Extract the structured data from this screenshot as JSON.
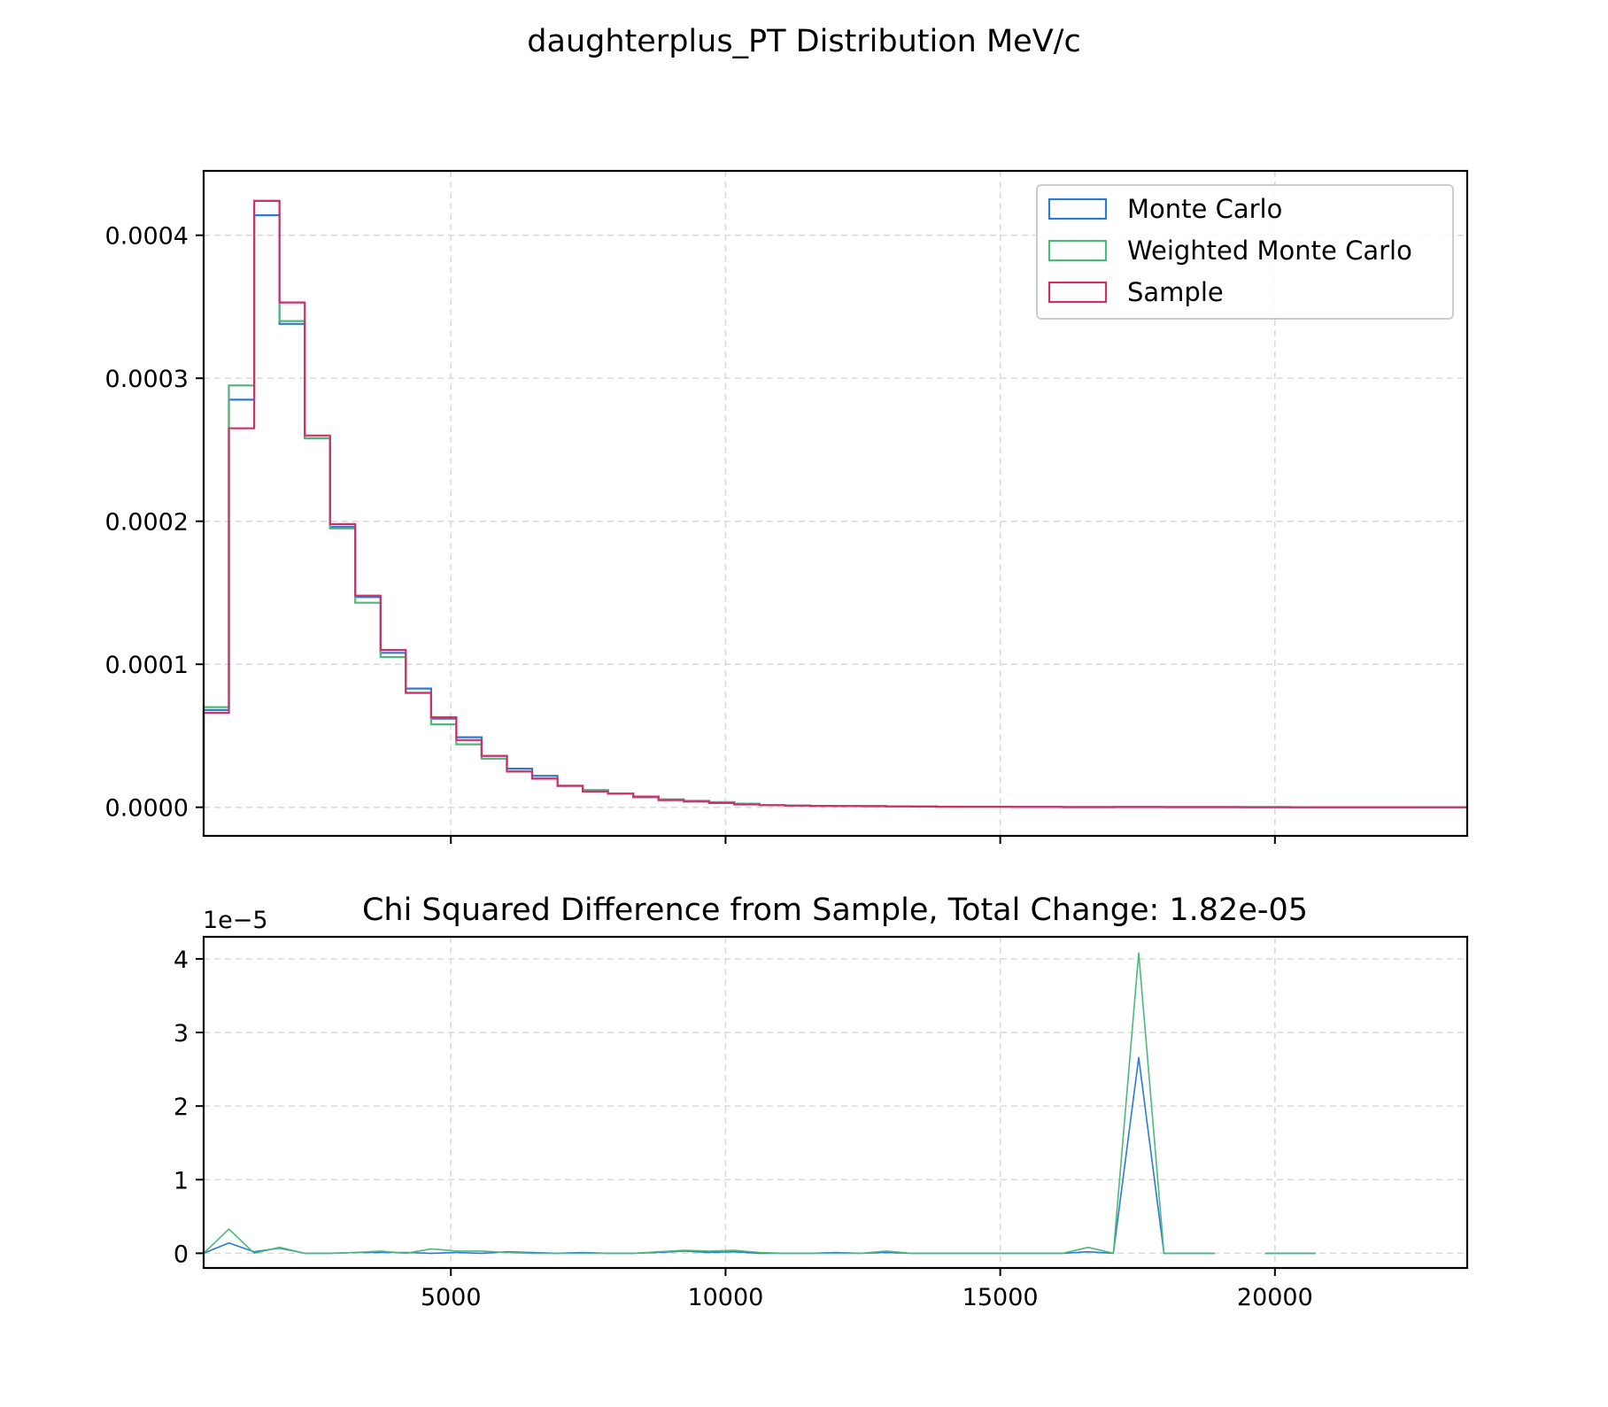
{
  "figure": {
    "suptitle": "daughterplus_PT Distribution MeV/c"
  },
  "colors": {
    "monte_carlo": "#2b7bd0",
    "weighted_monte_carlo": "#4cb87a",
    "sample": "#d0306a"
  },
  "chart_data": [
    {
      "type": "histogram-step",
      "title": "",
      "xlabel": "",
      "ylabel": "",
      "xlim": [
        500,
        23500
      ],
      "ylim": [
        -2e-05,
        0.000445
      ],
      "grid": true,
      "legend_position": "top-right",
      "yticks": [
        0,
        0.0001,
        0.0002,
        0.0003,
        0.0004
      ],
      "ytick_labels": [
        "0.0000",
        "0.0001",
        "0.0002",
        "0.0003",
        "0.0004"
      ],
      "xticks": [
        5000,
        10000,
        15000,
        20000
      ],
      "bin_edges": [
        500,
        960,
        1420,
        1880,
        2340,
        2800,
        3260,
        3720,
        4180,
        4640,
        5100,
        5560,
        6020,
        6480,
        6940,
        7400,
        7860,
        8320,
        8780,
        9240,
        9700,
        10160,
        10620,
        11080,
        11540,
        12000,
        12460,
        12920,
        13380,
        13840,
        14300,
        14760,
        15220,
        15680,
        16140,
        16600,
        17060,
        17520,
        17980,
        18440,
        18900,
        19360,
        19820,
        20280,
        20740,
        21200,
        21660,
        22120,
        22580,
        23040,
        23500
      ],
      "series": [
        {
          "name": "Monte Carlo",
          "color": "#2b7bd0",
          "values": [
            6.8e-05,
            0.000285,
            0.000414,
            0.000338,
            0.000258,
            0.000196,
            0.000147,
            0.000108,
            8.3e-05,
            6.2e-05,
            4.9e-05,
            3.6e-05,
            2.7e-05,
            2.2e-05,
            1.5e-05,
            1.2e-05,
            9.5e-06,
            7e-06,
            5.5e-06,
            4e-06,
            3.5e-06,
            2.5e-06,
            1.5e-06,
            1.2e-06,
            1e-06,
            8e-07,
            8e-07,
            6e-07,
            5e-07,
            4e-07,
            3e-07,
            3e-07,
            2e-07,
            2e-07,
            1e-07,
            1e-07,
            2e-07,
            2e-07,
            1e-07,
            1e-07,
            1e-07,
            1e-07,
            1e-07,
            5e-08,
            5e-08,
            5e-08,
            5e-08,
            5e-08,
            0.0,
            0.0
          ]
        },
        {
          "name": "Weighted Monte Carlo",
          "color": "#4cb87a",
          "values": [
            7e-05,
            0.000295,
            0.000424,
            0.00034,
            0.000258,
            0.000195,
            0.000143,
            0.000105,
            8e-05,
            5.8e-05,
            4.4e-05,
            3.4e-05,
            2.5e-05,
            2e-05,
            1.5e-05,
            1.2e-05,
            9.5e-06,
            7.5e-06,
            5.5e-06,
            4.5e-06,
            3.5e-06,
            2.5e-06,
            1.5e-06,
            1.2e-06,
            1e-06,
            8e-07,
            7e-07,
            6e-07,
            5e-07,
            4e-07,
            3e-07,
            3e-07,
            2e-07,
            2e-07,
            1e-07,
            1e-07,
            2e-07,
            2e-07,
            1e-07,
            1e-07,
            1e-07,
            1e-07,
            1e-07,
            5e-08,
            5e-08,
            5e-08,
            5e-08,
            5e-08,
            0.0,
            0.0
          ]
        },
        {
          "name": "Sample",
          "color": "#d0306a",
          "values": [
            6.6e-05,
            0.000265,
            0.000424,
            0.000353,
            0.00026,
            0.000198,
            0.000148,
            0.00011,
            8e-05,
            6.3e-05,
            4.7e-05,
            3.6e-05,
            2.5e-05,
            2e-05,
            1.5e-05,
            1.1e-05,
            9.5e-06,
            7.5e-06,
            5e-06,
            4e-06,
            3e-06,
            2e-06,
            1.5e-06,
            1.2e-06,
            1e-06,
            8e-07,
            8e-07,
            6e-07,
            5e-07,
            4e-07,
            3e-07,
            3e-07,
            2e-07,
            2e-07,
            1e-07,
            1e-07,
            1e-07,
            1e-07,
            1e-07,
            1e-07,
            1e-07,
            0.0,
            0.0,
            0.0,
            5e-08,
            5e-08,
            5e-08,
            5e-08,
            0.0,
            0.0
          ]
        }
      ]
    },
    {
      "type": "line",
      "title": "Chi Squared Difference from Sample, Total Change: 1.82e-05",
      "xlabel": "",
      "ylabel": "",
      "offset_text": "1e−5",
      "xlim": [
        500,
        23500
      ],
      "ylim": [
        -0.2,
        4.3
      ],
      "grid": true,
      "yticks": [
        0,
        1,
        2,
        3,
        4
      ],
      "ytick_labels": [
        "0",
        "1",
        "2",
        "3",
        "4"
      ],
      "xticks": [
        5000,
        10000,
        15000,
        20000
      ],
      "xtick_labels": [
        "5000",
        "10000",
        "15000",
        "20000"
      ],
      "series": [
        {
          "name": "Monte Carlo",
          "color": "#2b7bd0",
          "x": [
            500,
            960,
            1420,
            1880,
            2340,
            2800,
            3260,
            3720,
            4180,
            4640,
            5100,
            5560,
            6020,
            6480,
            6940,
            7400,
            7860,
            8320,
            8780,
            9240,
            9700,
            10160,
            10620,
            11080,
            11540,
            12000,
            12460,
            12920,
            13380,
            13840,
            14300,
            14760,
            15220,
            15680,
            16140,
            16600,
            17060,
            17520,
            17980,
            18440,
            18900,
            19820,
            20280,
            20740
          ],
          "y": [
            0.0,
            0.14,
            0.02,
            0.07,
            0.0,
            0.0,
            0.01,
            0.01,
            0.01,
            0.0,
            0.01,
            0.0,
            0.02,
            0.01,
            0.0,
            0.01,
            0.0,
            0.0,
            0.01,
            0.03,
            0.01,
            0.02,
            0.0,
            0.0,
            0.0,
            0.01,
            0.0,
            0.01,
            0.0,
            0.0,
            0.0,
            0.0,
            0.0,
            0.0,
            0.0,
            0.02,
            0.0,
            2.66,
            0.0,
            0.0,
            0.0,
            0.0,
            0.0,
            0.0
          ],
          "breaks_after_index": [
            40
          ]
        },
        {
          "name": "Weighted Monte Carlo",
          "color": "#4cb87a",
          "x": [
            500,
            960,
            1420,
            1880,
            2340,
            2800,
            3260,
            3720,
            4180,
            4640,
            5100,
            5560,
            6020,
            6480,
            6940,
            7400,
            7860,
            8320,
            8780,
            9240,
            9700,
            10160,
            10620,
            11080,
            11540,
            12000,
            12460,
            12920,
            13380,
            13840,
            14300,
            14760,
            15220,
            15680,
            16140,
            16600,
            17060,
            17520,
            17980,
            18440,
            18900,
            19820,
            20280,
            20740
          ],
          "y": [
            0.0,
            0.33,
            0.0,
            0.08,
            0.0,
            0.0,
            0.01,
            0.03,
            0.0,
            0.06,
            0.03,
            0.03,
            0.01,
            0.0,
            0.0,
            0.0,
            0.0,
            0.0,
            0.02,
            0.04,
            0.03,
            0.04,
            0.01,
            0.0,
            0.0,
            0.0,
            0.0,
            0.03,
            0.0,
            0.0,
            0.0,
            0.0,
            0.0,
            0.0,
            0.0,
            0.08,
            0.0,
            4.08,
            0.0,
            0.0,
            0.0,
            0.0,
            0.0,
            0.0
          ],
          "breaks_after_index": [
            40
          ]
        }
      ]
    }
  ]
}
